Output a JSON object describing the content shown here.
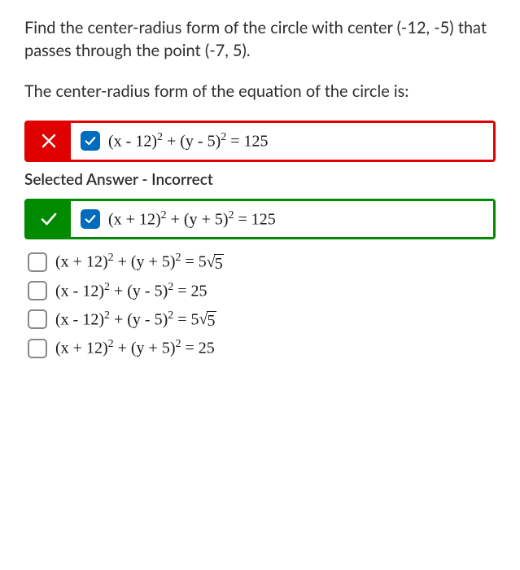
{
  "question": {
    "paragraph1": "Find the center-radius form of the circle with center (-12, -5) that passes through the point (-7, 5).",
    "paragraph2": "The center-radius form of the equation of the circle is:"
  },
  "feedbackLabel": "Selected Answer - Incorrect",
  "colors": {
    "incorrect": "#e10000",
    "correct": "#008a00",
    "checkboxChecked": "#006cbe",
    "text": "#2d2d2d"
  },
  "options": {
    "selectedIncorrect": {
      "checked": true,
      "mathHtml": "(x - 12)<sup>2</sup> + (y - 5)<sup>2</sup> = 125"
    },
    "correct": {
      "checked": true,
      "mathHtml": "(x + 12)<sup>2</sup> + (y + 5)<sup>2</sup> = 125"
    },
    "others": [
      {
        "checked": false,
        "mathHtml": "(x + 12)<sup>2</sup> + (y + 5)<sup>2</sup> = 5<span class='sqrt'><span class='rad'>√</span><span class='arg'>5</span></span>"
      },
      {
        "checked": false,
        "mathHtml": "(x - 12)<sup>2</sup> + (y - 5)<sup>2</sup> = 25"
      },
      {
        "checked": false,
        "mathHtml": "(x - 12)<sup>2</sup> + (y - 5)<sup>2</sup> = 5<span class='sqrt'><span class='rad'>√</span><span class='arg'>5</span></span>"
      },
      {
        "checked": false,
        "mathHtml": "(x + 12)<sup>2</sup> + (y + 5)<sup>2</sup> = 25"
      }
    ]
  }
}
